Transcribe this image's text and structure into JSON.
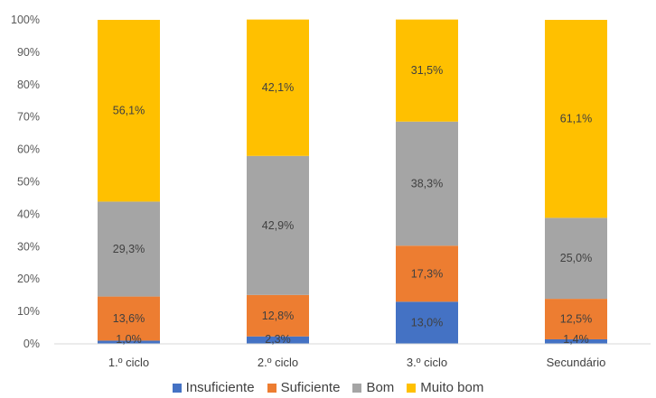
{
  "chart_data": {
    "type": "bar",
    "stacked": true,
    "percent": true,
    "categories": [
      "1.º ciclo",
      "2.º ciclo",
      "3.º ciclo",
      "Secundário"
    ],
    "series": [
      {
        "name": "Insuficiente",
        "color": "#4472C4",
        "values": [
          1.0,
          2.3,
          13.0,
          1.4
        ],
        "labels": [
          "1,0%",
          "2,3%",
          "13,0%",
          "1,4%"
        ]
      },
      {
        "name": "Suficiente",
        "color": "#ED7D31",
        "values": [
          13.6,
          12.8,
          17.3,
          12.5
        ],
        "labels": [
          "13,6%",
          "12,8%",
          "17,3%",
          "12,5%"
        ]
      },
      {
        "name": "Bom",
        "color": "#A5A5A5",
        "values": [
          29.3,
          42.9,
          38.3,
          25.0
        ],
        "labels": [
          "29,3%",
          "42,9%",
          "38,3%",
          "25,0%"
        ]
      },
      {
        "name": "Muito bom",
        "color": "#FFC000",
        "values": [
          56.1,
          42.1,
          31.5,
          61.1
        ],
        "labels": [
          "56,1%",
          "42,1%",
          "31,5%",
          "61,1%"
        ]
      }
    ],
    "ylim": [
      0,
      100
    ],
    "yticks": [
      "0%",
      "10%",
      "20%",
      "30%",
      "40%",
      "50%",
      "60%",
      "70%",
      "80%",
      "90%",
      "100%"
    ],
    "grid": false,
    "legend_position": "bottom"
  }
}
